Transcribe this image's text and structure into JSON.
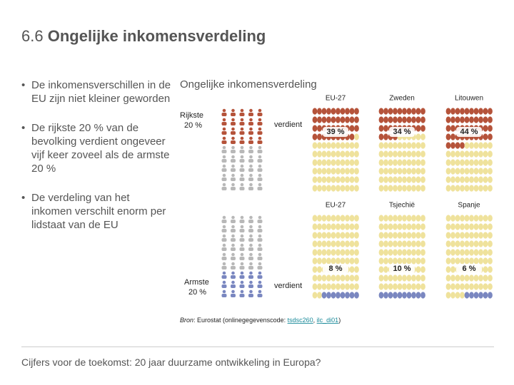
{
  "title": {
    "number": "6.6",
    "text": "Ongelijke inkomensverdeling"
  },
  "bullets": [
    "De inkomensverschillen in de EU zijn niet kleiner geworden",
    "De rijkste 20 % van de bevolking verdient ongeveer vijf keer zoveel als de armste 20 %",
    "De verdeling van het inkomen verschilt enorm per lidstaat van de EU"
  ],
  "infographic": {
    "title": "Ongelijke inkomensverdeling",
    "richest": {
      "label": "Rijkste",
      "share": "20 %",
      "verb": "verdient",
      "color": "#b5533a",
      "panels": [
        {
          "name": "EU-27",
          "value": 39,
          "value_label": "39 %"
        },
        {
          "name": "Zweden",
          "value": 34,
          "value_label": "34 %"
        },
        {
          "name": "Litouwen",
          "value": 44,
          "value_label": "44 %"
        }
      ]
    },
    "poorest": {
      "label": "Armste",
      "share": "20 %",
      "verb": "verdient",
      "color": "#7a87c0",
      "panels": [
        {
          "name": "EU-27",
          "value": 8,
          "value_label": "8 %"
        },
        {
          "name": "Tsjechië",
          "value": 10,
          "value_label": "10 %"
        },
        {
          "name": "Spanje",
          "value": 6,
          "value_label": "6 %"
        }
      ]
    },
    "rest_color": "#efe29c"
  },
  "source": [
    "Bron",
    ": Eurostat (onlinegegevenscode: ",
    "tsdsc260",
    ", ",
    "ilc_di01",
    ")"
  ],
  "footer": "Cijfers voor de toekomst: 20 jaar duurzame ontwikkeling in Europa?"
}
